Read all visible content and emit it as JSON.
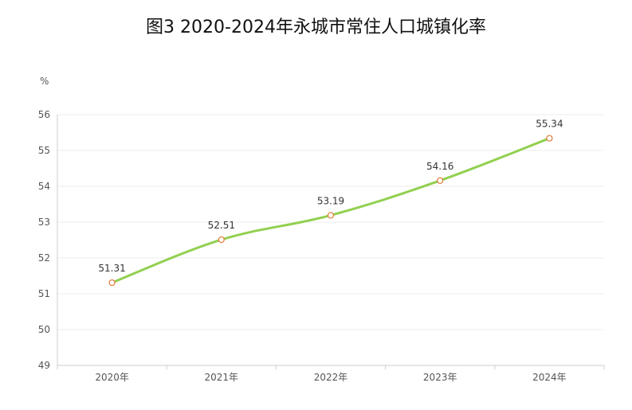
{
  "chart_data": {
    "type": "line",
    "title": "图3  2020-2024年永城市常住人口城镇化率",
    "ylabel": "%",
    "xlabel": "",
    "categories": [
      "2020年",
      "2021年",
      "2022年",
      "2023年",
      "2024年"
    ],
    "series": [
      {
        "values": [
          51.31,
          52.51,
          53.19,
          54.16,
          55.34
        ]
      }
    ],
    "data_labels": [
      "51.31",
      "52.51",
      "53.19",
      "54.16",
      "55.34"
    ],
    "ylim": [
      49,
      56
    ],
    "yticks": [
      "49",
      "50",
      "51",
      "52",
      "53",
      "54",
      "55",
      "56"
    ],
    "grid": true,
    "legend": "none",
    "colors": {
      "line": "#92d050",
      "marker_stroke": "#e07b39",
      "marker_fill": "#ffffff",
      "grid": "#eeeeee",
      "axis": "#cccccc"
    }
  }
}
